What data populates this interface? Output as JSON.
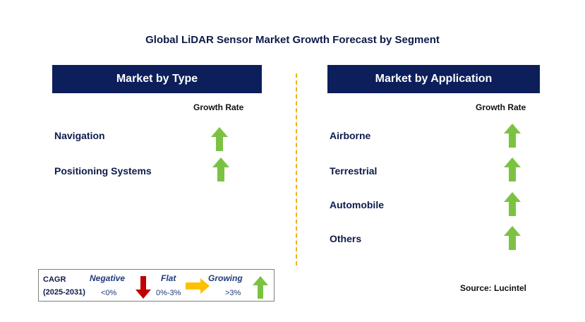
{
  "title": "Global LiDAR Sensor Market Growth Forecast by Segment",
  "left_panel": {
    "header": "Market by Type",
    "growth_label": "Growth Rate",
    "items": [
      {
        "label": "Navigation",
        "trend": "growing"
      },
      {
        "label": "Positioning Systems",
        "trend": "growing"
      }
    ]
  },
  "right_panel": {
    "header": "Market by Application",
    "growth_label": "Growth Rate",
    "items": [
      {
        "label": "Airborne",
        "trend": "growing"
      },
      {
        "label": "Terrestrial",
        "trend": "growing"
      },
      {
        "label": "Automobile",
        "trend": "growing"
      },
      {
        "label": "Others",
        "trend": "growing"
      }
    ]
  },
  "legend": {
    "cagr_label": "CAGR",
    "period": "(2025-2031)",
    "negative": {
      "label": "Negative",
      "range": "<0%",
      "icon": "down-arrow-icon",
      "color": "#c00000"
    },
    "flat": {
      "label": "Flat",
      "range": "0%-3%",
      "icon": "right-arrow-icon",
      "color": "#ffc000"
    },
    "growing": {
      "label": "Growing",
      "range": ">3%",
      "icon": "up-arrow-icon",
      "color": "#7cc242"
    }
  },
  "source": "Source: Lucintel",
  "colors": {
    "header_bg": "#0c1f5a",
    "divider": "#f2b01e",
    "up_arrow": "#7cc242"
  }
}
